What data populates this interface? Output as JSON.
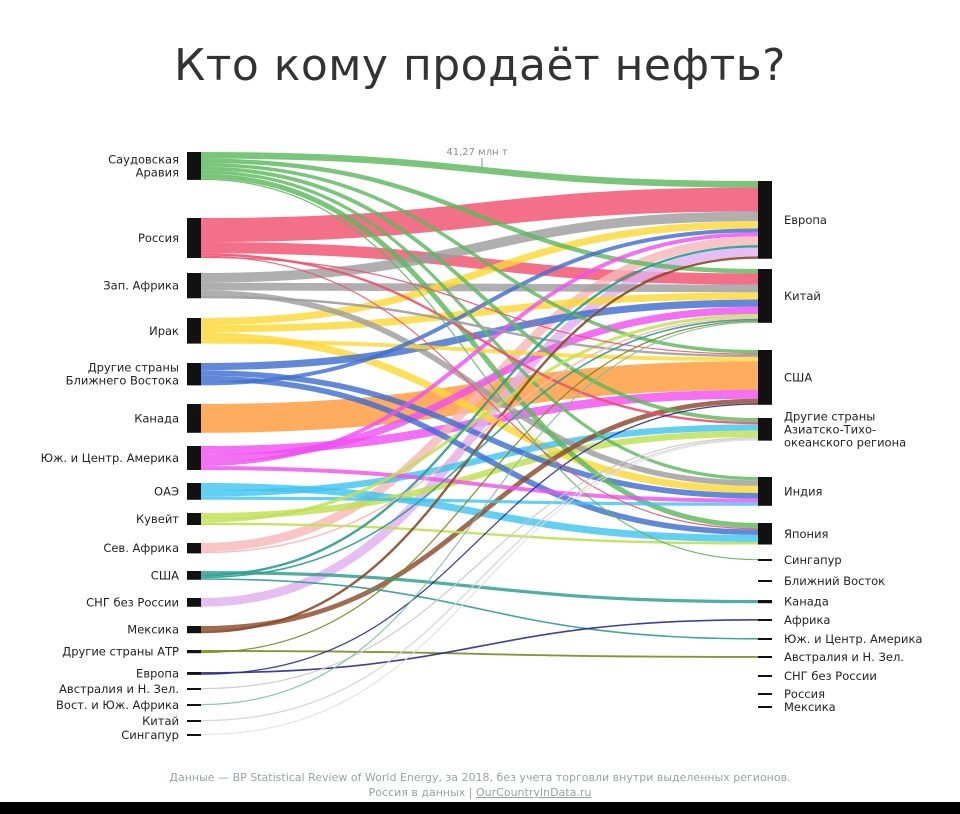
{
  "title": "Кто кому продаёт нефть?",
  "scale_label": "41,27 млн т",
  "footer": {
    "line1": "Данные — BP Statistical Review of World Energy, за 2018, без учета торговли внутри выделенных регионов.",
    "line2_prefix": "Россия в данных |",
    "line2_link": "OurCountryInData.ru"
  },
  "chart_data": {
    "type": "sankey",
    "title": "Кто кому продаёт нефть?",
    "scale_reference": "41,27 млн т",
    "sources": [
      {
        "name": "Саудовская Аравия",
        "color": "#5cb85c"
      },
      {
        "name": "Россия",
        "color": "#f0506e"
      },
      {
        "name": "Зап. Африка",
        "color": "#9e9e9e"
      },
      {
        "name": "Ирак",
        "color": "#fdd835"
      },
      {
        "name": "Другие страны Ближнего Востока",
        "color": "#3f6fd1"
      },
      {
        "name": "Канада",
        "color": "#ff9a3c"
      },
      {
        "name": "Юж. и Центр. Америка",
        "color": "#f04ff0"
      },
      {
        "name": "ОАЭ",
        "color": "#40c4f0"
      },
      {
        "name": "Кувейт",
        "color": "#c0e050"
      },
      {
        "name": "Сев. Африка",
        "color": "#f7b7b7"
      },
      {
        "name": "США",
        "color": "#2a9d8f"
      },
      {
        "name": "СНГ без России",
        "color": "#e0b0f0"
      },
      {
        "name": "Мексика",
        "color": "#8b4a2a"
      },
      {
        "name": "Другие страны АТР",
        "color": "#7a8a20"
      },
      {
        "name": "Европа",
        "color": "#2a2a8a"
      },
      {
        "name": "Австралия и Н. Зел.",
        "color": "#c8c8c8"
      },
      {
        "name": "Вост. и Юж. Африка",
        "color": "#7fc0a0"
      },
      {
        "name": "Китай",
        "color": "#d0d0d0"
      },
      {
        "name": "Сингапур",
        "color": "#e0e0e0"
      }
    ],
    "targets": [
      {
        "name": "Европа"
      },
      {
        "name": "Китай"
      },
      {
        "name": "США"
      },
      {
        "name": "Другие страны Азиатско-Тихо- океанского региона"
      },
      {
        "name": "Индия"
      },
      {
        "name": "Япония"
      },
      {
        "name": "Сингапур"
      },
      {
        "name": "Ближний Восток"
      },
      {
        "name": "Канада"
      },
      {
        "name": "Африка"
      },
      {
        "name": "Юж. и Центр. Америка"
      },
      {
        "name": "Австралия и Н. Зел."
      },
      {
        "name": "СНГ без России"
      },
      {
        "name": "Россия"
      },
      {
        "name": "Мексика"
      }
    ],
    "flows": [
      {
        "from": "Саудовская Аравия",
        "to": "Европа",
        "value": 41
      },
      {
        "from": "Саудовская Аравия",
        "to": "Китай",
        "value": 28
      },
      {
        "from": "Саудовская Аравия",
        "to": "США",
        "value": 22
      },
      {
        "from": "Саудовская Аравия",
        "to": "Другие страны Азиатско-Тихо- океанского региона",
        "value": 24
      },
      {
        "from": "Саудовская Аравия",
        "to": "Индия",
        "value": 20
      },
      {
        "from": "Саудовская Аравия",
        "to": "Япония",
        "value": 32
      },
      {
        "from": "Саудовская Аравия",
        "to": "Сингапур",
        "value": 5
      },
      {
        "from": "Россия",
        "to": "Европа",
        "value": 150
      },
      {
        "from": "Россия",
        "to": "Китай",
        "value": 70
      },
      {
        "from": "Россия",
        "to": "Другие страны Азиатско-Тихо- океанского региона",
        "value": 15
      },
      {
        "from": "Россия",
        "to": "Япония",
        "value": 6
      },
      {
        "from": "Россия",
        "to": "США",
        "value": 4
      },
      {
        "from": "Зап. Африка",
        "to": "Европа",
        "value": 60
      },
      {
        "from": "Зап. Африка",
        "to": "Китай",
        "value": 48
      },
      {
        "from": "Зап. Африка",
        "to": "Индия",
        "value": 35
      },
      {
        "from": "Зап. Африка",
        "to": "США",
        "value": 15
      },
      {
        "from": "Ирак",
        "to": "Европа",
        "value": 45
      },
      {
        "from": "Ирак",
        "to": "Китай",
        "value": 45
      },
      {
        "from": "Ирак",
        "to": "Индия",
        "value": 45
      },
      {
        "from": "Ирак",
        "to": "США",
        "value": 25
      },
      {
        "from": "Другие страны Ближнего Востока",
        "to": "Китай",
        "value": 45
      },
      {
        "from": "Другие страны Ближнего Востока",
        "to": "Индия",
        "value": 35
      },
      {
        "from": "Другие страны Ближнего Востока",
        "to": "Япония",
        "value": 35
      },
      {
        "from": "Другие страны Ближнего Востока",
        "to": "Европа",
        "value": 25
      },
      {
        "from": "Канада",
        "to": "США",
        "value": 180
      },
      {
        "from": "Юж. и Центр. Америка",
        "to": "США",
        "value": 55
      },
      {
        "from": "Юж. и Центр. Америка",
        "to": "Китай",
        "value": 45
      },
      {
        "from": "Юж. и Центр. Америка",
        "to": "Европа",
        "value": 25
      },
      {
        "from": "Юж. и Центр. Америка",
        "to": "Индия",
        "value": 25
      },
      {
        "from": "ОАЭ",
        "to": "Япония",
        "value": 45
      },
      {
        "from": "ОАЭ",
        "to": "Другие страны Азиатско-Тихо- океанского региона",
        "value": 40
      },
      {
        "from": "ОАЭ",
        "to": "Индия",
        "value": 20
      },
      {
        "from": "Кувейт",
        "to": "Другие страны Азиатско-Тихо- океанского региона",
        "value": 40
      },
      {
        "from": "Кувейт",
        "to": "Китай",
        "value": 20
      },
      {
        "from": "Кувейт",
        "to": "Япония",
        "value": 15
      },
      {
        "from": "Сев. Африка",
        "to": "Европа",
        "value": 55
      },
      {
        "from": "Сев. Африка",
        "to": "Китай",
        "value": 10
      },
      {
        "from": "США",
        "to": "Канада",
        "value": 20
      },
      {
        "from": "США",
        "to": "Европа",
        "value": 15
      },
      {
        "from": "США",
        "to": "Китай",
        "value": 10
      },
      {
        "from": "США",
        "to": "Юж. и Центр. Америка",
        "value": 10
      },
      {
        "from": "СНГ без России",
        "to": "Европа",
        "value": 55
      },
      {
        "from": "Мексика",
        "to": "США",
        "value": 30
      },
      {
        "from": "Мексика",
        "to": "Европа",
        "value": 15
      },
      {
        "from": "Другие страны АТР",
        "to": "Австралия и Н. Зел.",
        "value": 12
      },
      {
        "from": "Другие страны АТР",
        "to": "Китай",
        "value": 8
      },
      {
        "from": "Европа",
        "to": "Африка",
        "value": 10
      },
      {
        "from": "Европа",
        "to": "США",
        "value": 8
      },
      {
        "from": "Австралия и Н. Зел.",
        "to": "Другие страны Азиатско-Тихо- океанского региона",
        "value": 6
      },
      {
        "from": "Вост. и Юж. Африка",
        "to": "Китай",
        "value": 4
      },
      {
        "from": "Китай",
        "to": "Другие страны Азиатско-Тихо- океанского региона",
        "value": 2
      },
      {
        "from": "Сингапур",
        "to": "Другие страны Азиатско-Тихо- океанского региона",
        "value": 1
      }
    ]
  }
}
